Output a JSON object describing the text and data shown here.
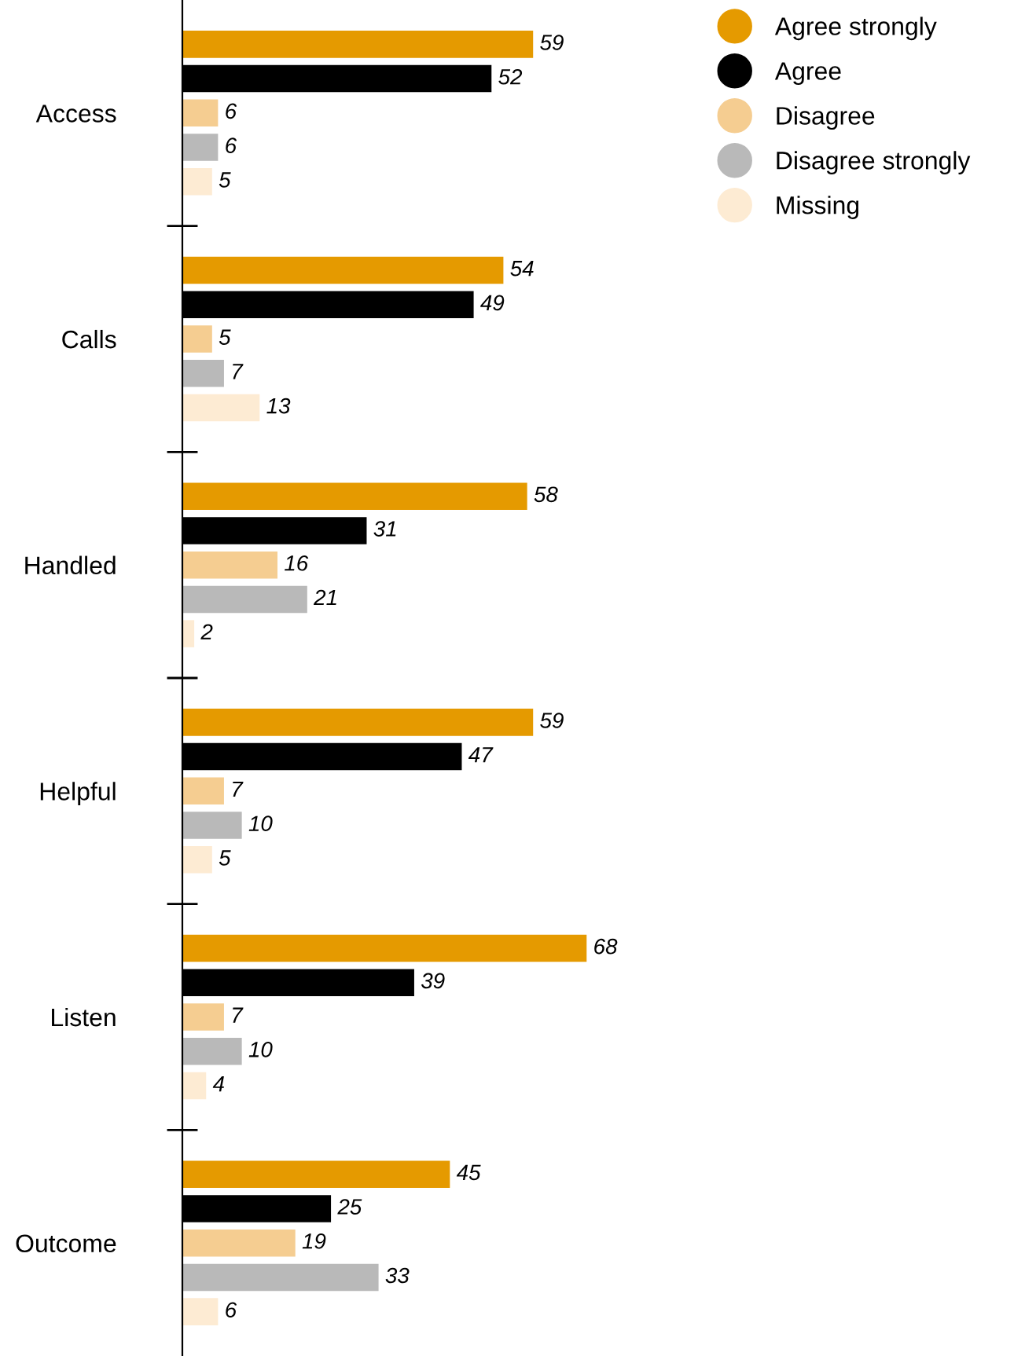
{
  "chart_data": {
    "type": "bar",
    "orientation": "horizontal",
    "categories": [
      "Access",
      "Calls",
      "Handled",
      "Helpful",
      "Listen",
      "Outcome"
    ],
    "series": [
      {
        "name": "Agree strongly",
        "color": "#e59a00",
        "values": [
          59,
          54,
          58,
          59,
          68,
          45
        ]
      },
      {
        "name": "Agree",
        "color": "#000000",
        "values": [
          52,
          49,
          31,
          47,
          39,
          25
        ]
      },
      {
        "name": "Disagree",
        "color": "#f5cd91",
        "values": [
          6,
          5,
          16,
          7,
          7,
          19
        ]
      },
      {
        "name": "Disagree strongly",
        "color": "#b9b9b9",
        "values": [
          6,
          7,
          21,
          10,
          10,
          33
        ]
      },
      {
        "name": "Missing",
        "color": "#fdebd3",
        "values": [
          5,
          13,
          2,
          5,
          4,
          6
        ]
      }
    ],
    "data_labels": true,
    "legend": "top right",
    "grid": false,
    "tick_labels": "y"
  }
}
